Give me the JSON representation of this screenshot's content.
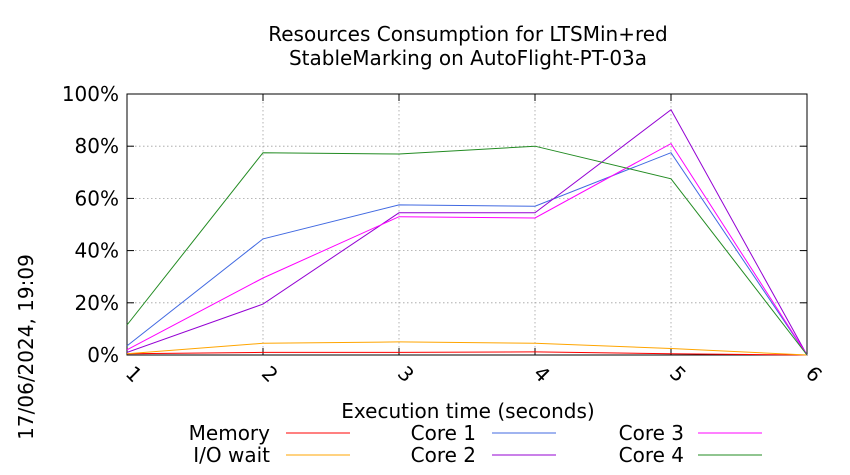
{
  "chart_data": {
    "type": "line",
    "title_lines": [
      "Resources Consumption for LTSMin+red",
      "StableMarking on AutoFlight-PT-03a"
    ],
    "xlabel": "Execution time (seconds)",
    "ylabel": "",
    "side_label": "17/06/2024, 19:09",
    "x": [
      1,
      2,
      3,
      4,
      5,
      6
    ],
    "x_ticks": [
      "1",
      "2",
      "3",
      "4",
      "5",
      "6"
    ],
    "xlim": [
      1,
      6
    ],
    "ylim": [
      0,
      100
    ],
    "y_ticks": [
      0,
      20,
      40,
      60,
      80,
      100
    ],
    "y_tick_labels": [
      "0%",
      "20%",
      "40%",
      "60%",
      "80%",
      "100%"
    ],
    "grid": true,
    "legend_position": "bottom",
    "series": [
      {
        "name": "Memory",
        "color": "#ff0000",
        "values": [
          0.5,
          1,
          1,
          1.2,
          0.5,
          0
        ]
      },
      {
        "name": "I/O wait",
        "color": "#ffa500",
        "values": [
          0.5,
          4.5,
          5,
          4.5,
          2.5,
          0
        ]
      },
      {
        "name": "Core 1",
        "color": "#4169e1",
        "values": [
          3.5,
          44.5,
          57.5,
          57,
          77.5,
          0
        ]
      },
      {
        "name": "Core 2",
        "color": "#9400d3",
        "values": [
          1,
          19.5,
          54.5,
          54.5,
          94,
          0
        ]
      },
      {
        "name": "Core 3",
        "color": "#ff00ff",
        "values": [
          2,
          29.5,
          53,
          52.5,
          81,
          0
        ]
      },
      {
        "name": "Core 4",
        "color": "#228b22",
        "values": [
          11.5,
          77.5,
          77,
          80,
          67.5,
          0
        ]
      }
    ]
  }
}
